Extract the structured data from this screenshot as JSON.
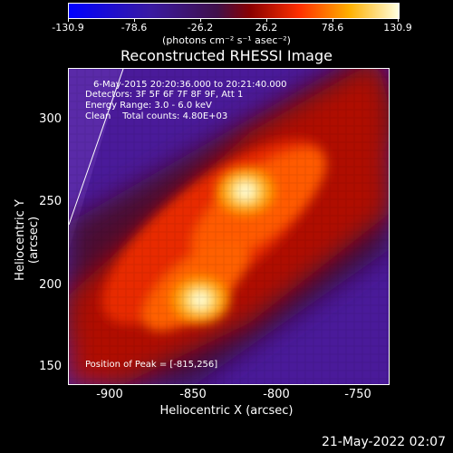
{
  "colorbar": {
    "tick_labels": [
      "-130.9",
      "-78.6",
      "-26.2",
      "26.2",
      "78.6",
      "130.9"
    ],
    "units_text": "(photons cm⁻² s⁻¹ asec⁻²)"
  },
  "plot": {
    "title": "Reconstructed RHESSI Image",
    "info_lines": {
      "line1": "6-May-2015 20:20:36.000 to 20:21:40.000",
      "line2": "Detectors: 3F 5F 6F 7F 8F 9F, Att 1",
      "line3": "Energy Range: 3.0 - 6.0 keV",
      "line4": "Clean    Total counts: 4.80E+03"
    },
    "peak_text": "Position of Peak = [-815,256]",
    "xlabel": "Heliocentric X (arcsec)",
    "ylabel": "Heliocentric Y (arcsec)",
    "xticks": [
      "-900",
      "-850",
      "-800",
      "-750"
    ],
    "yticks": [
      "300",
      "250",
      "200",
      "150"
    ]
  },
  "footer": {
    "timestamp": "21-May-2022 02:07"
  },
  "colors": {
    "background": "#000000",
    "axis": "#ffffff"
  }
}
